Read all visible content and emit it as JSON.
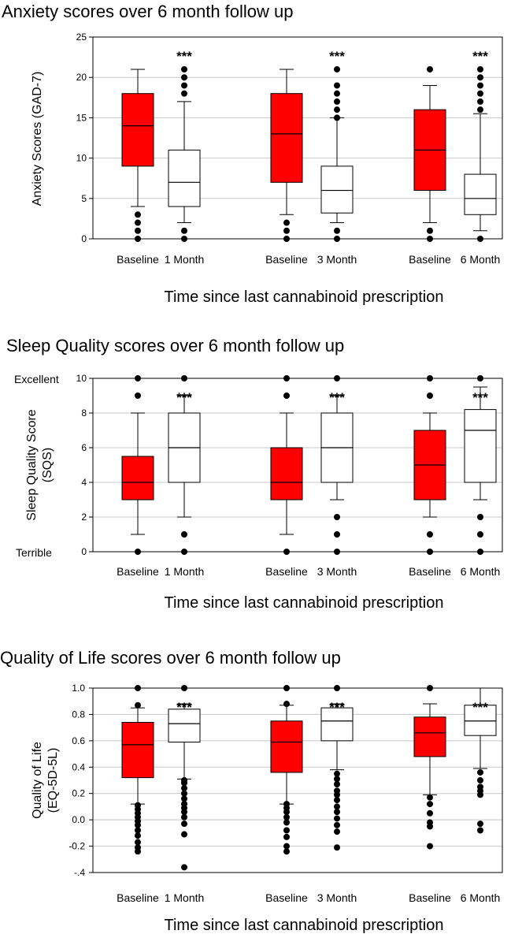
{
  "chart_data": [
    {
      "type": "box",
      "title": "Anxiety scores over 6 month follow up",
      "xlabel": "Time since last cannabinoid prescription",
      "ylabel": "Anxiety Scores (GAD-7)",
      "ylim": [
        0,
        25
      ],
      "yticks": [
        0,
        5,
        10,
        15,
        20,
        25
      ],
      "ytick_labels": [
        "0",
        "5",
        "10",
        "15",
        "20",
        "25"
      ],
      "grid": true,
      "groups": [
        {
          "label": "Baseline",
          "fill": "#ff0000",
          "whisker_low": 4,
          "q1": 9,
          "median": 14,
          "q3": 18,
          "whisker_high": 21,
          "outliers": [
            0,
            1,
            2,
            3
          ],
          "significance": ""
        },
        {
          "label": "1 Month",
          "fill": "#ffffff",
          "whisker_low": 2,
          "q1": 4,
          "median": 7,
          "q3": 11,
          "whisker_high": 17,
          "outliers": [
            0,
            1,
            18,
            19,
            20,
            21
          ],
          "significance": "***"
        },
        {
          "label": "Baseline",
          "fill": "#ff0000",
          "whisker_low": 3,
          "q1": 7,
          "median": 13,
          "q3": 18,
          "whisker_high": 21,
          "outliers": [
            0,
            1,
            2
          ],
          "significance": ""
        },
        {
          "label": "3 Month",
          "fill": "#ffffff",
          "whisker_low": 2,
          "q1": 3.2,
          "median": 6,
          "q3": 9,
          "whisker_high": 15,
          "outliers": [
            0,
            1,
            15,
            16,
            17,
            18,
            19,
            21
          ],
          "significance": "***"
        },
        {
          "label": "Baseline",
          "fill": "#ff0000",
          "whisker_low": 2,
          "q1": 6,
          "median": 11,
          "q3": 16,
          "whisker_high": 19,
          "outliers": [
            0,
            1,
            21
          ],
          "significance": ""
        },
        {
          "label": "6 Month",
          "fill": "#ffffff",
          "whisker_low": 1,
          "q1": 3,
          "median": 5,
          "q3": 8,
          "whisker_high": 15.5,
          "outliers": [
            0,
            16,
            17,
            18,
            19,
            20,
            21
          ],
          "significance": "***"
        }
      ]
    },
    {
      "type": "box",
      "title": "Sleep Quality scores over 6 month follow up",
      "xlabel": "Time since last cannabinoid prescription",
      "ylabel": "Sleep Quality Score (SQS)",
      "ylabel_lines": [
        "Sleep Quality Score",
        "(SQS)"
      ],
      "ylim": [
        0,
        10
      ],
      "yticks": [
        0,
        2,
        4,
        6,
        8,
        10
      ],
      "ytick_labels": [
        "0",
        "2",
        "4",
        "6",
        "8",
        "10"
      ],
      "scale_labels": {
        "top": "Excellent",
        "bottom": "Terrible"
      },
      "grid": true,
      "groups": [
        {
          "label": "Baseline",
          "fill": "#ff0000",
          "whisker_low": 1,
          "q1": 3,
          "median": 4,
          "q3": 5.5,
          "whisker_high": 8,
          "outliers": [
            0,
            9,
            10
          ],
          "significance": ""
        },
        {
          "label": "1 Month",
          "fill": "#ffffff",
          "whisker_low": 2,
          "q1": 4,
          "median": 6,
          "q3": 8,
          "whisker_high": 9,
          "outliers": [
            0,
            1,
            10
          ],
          "significance": "***"
        },
        {
          "label": "Baseline",
          "fill": "#ff0000",
          "whisker_low": 1,
          "q1": 3,
          "median": 4,
          "q3": 6,
          "whisker_high": 8,
          "outliers": [
            0,
            9,
            10
          ],
          "significance": ""
        },
        {
          "label": "3 Month",
          "fill": "#ffffff",
          "whisker_low": 3,
          "q1": 4,
          "median": 6,
          "q3": 8,
          "whisker_high": 9,
          "outliers": [
            0,
            1,
            2,
            10
          ],
          "significance": "***"
        },
        {
          "label": "Baseline",
          "fill": "#ff0000",
          "whisker_low": 2,
          "q1": 3,
          "median": 5,
          "q3": 7,
          "whisker_high": 8,
          "outliers": [
            0,
            1,
            9,
            10
          ],
          "significance": ""
        },
        {
          "label": "6 Month",
          "fill": "#ffffff",
          "whisker_low": 3,
          "q1": 4,
          "median": 7,
          "q3": 8.2,
          "whisker_high": 9.5,
          "outliers": [
            0,
            1,
            2,
            10
          ],
          "significance": "***"
        }
      ]
    },
    {
      "type": "box",
      "title": "Quality of Life scores over 6 month follow up",
      "xlabel": "Time since last cannabinoid prescription",
      "ylabel": "Quality of Life (EQ-5D-5L)",
      "ylabel_lines": [
        "Quality of Life",
        "(EQ-5D-5L)"
      ],
      "ylim": [
        -0.4,
        1.0
      ],
      "yticks": [
        -0.4,
        -0.2,
        0.0,
        0.2,
        0.4,
        0.6,
        0.8,
        1.0
      ],
      "ytick_labels": [
        "-.4",
        "-0.2",
        "0.0",
        "0.2",
        "0.4",
        "0.6",
        "0.8",
        "1.0"
      ],
      "grid": true,
      "groups": [
        {
          "label": "Baseline",
          "fill": "#ff0000",
          "whisker_low": 0.12,
          "q1": 0.32,
          "median": 0.57,
          "q3": 0.74,
          "whisker_high": 0.85,
          "outliers": [
            -0.24,
            -0.21,
            -0.17,
            -0.12,
            -0.08,
            -0.04,
            -0.01,
            0.02,
            0.05,
            0.08,
            0.11,
            0.87,
            1.0
          ],
          "significance": ""
        },
        {
          "label": "1 Month",
          "fill": "#ffffff",
          "whisker_low": 0.31,
          "q1": 0.59,
          "median": 0.73,
          "q3": 0.84,
          "whisker_high": 0.88,
          "outliers": [
            -0.36,
            -0.11,
            -0.03,
            0.02,
            0.06,
            0.09,
            0.12,
            0.16,
            0.2,
            0.24,
            0.28,
            0.3,
            1.0
          ],
          "significance": "***"
        },
        {
          "label": "Baseline",
          "fill": "#ff0000",
          "whisker_low": 0.12,
          "q1": 0.36,
          "median": 0.59,
          "q3": 0.75,
          "whisker_high": 0.87,
          "outliers": [
            -0.24,
            -0.2,
            -0.13,
            -0.08,
            -0.02,
            0.02,
            0.06,
            0.09,
            0.12,
            0.88,
            1.0
          ],
          "significance": ""
        },
        {
          "label": "3 Month",
          "fill": "#ffffff",
          "whisker_low": 0.38,
          "q1": 0.6,
          "median": 0.75,
          "q3": 0.85,
          "whisker_high": 0.88,
          "outliers": [
            -0.21,
            -0.09,
            -0.04,
            0.01,
            0.06,
            0.1,
            0.15,
            0.19,
            0.22,
            0.27,
            0.31,
            0.35,
            1.0
          ],
          "significance": "***"
        },
        {
          "label": "Baseline",
          "fill": "#ff0000",
          "whisker_low": 0.19,
          "q1": 0.48,
          "median": 0.66,
          "q3": 0.78,
          "whisker_high": 0.88,
          "outliers": [
            -0.2,
            -0.05,
            -0.02,
            0.05,
            0.12,
            0.17,
            1.0
          ],
          "significance": ""
        },
        {
          "label": "6 Month",
          "fill": "#ffffff",
          "whisker_low": 0.39,
          "q1": 0.64,
          "median": 0.75,
          "q3": 0.87,
          "whisker_high": 1.0,
          "outliers": [
            -0.08,
            -0.03,
            0.19,
            0.22,
            0.25,
            0.3,
            0.36
          ],
          "significance": "***"
        }
      ]
    }
  ]
}
